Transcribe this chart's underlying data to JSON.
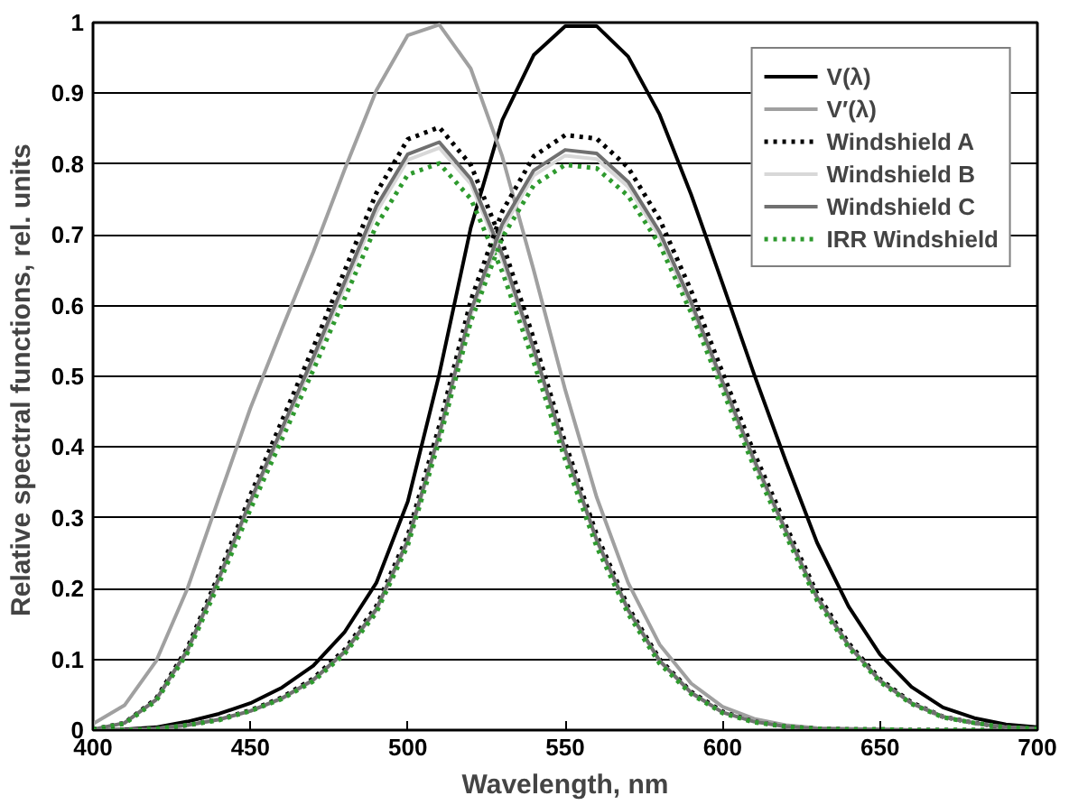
{
  "chart_data": {
    "type": "line",
    "xlabel": "Wavelength, nm",
    "ylabel": "Relative spectral functions,  rel. units",
    "x": [
      400,
      410,
      420,
      430,
      440,
      450,
      460,
      470,
      480,
      490,
      500,
      510,
      520,
      530,
      540,
      550,
      560,
      570,
      580,
      590,
      600,
      610,
      620,
      630,
      640,
      650,
      660,
      670,
      680,
      690,
      700
    ],
    "xlim": [
      400,
      700
    ],
    "xticks": [
      400,
      450,
      500,
      550,
      600,
      650,
      700
    ],
    "ylim": [
      0,
      1
    ],
    "yticks": [
      0,
      0.1,
      0.2,
      0.3,
      0.4,
      0.5,
      0.6,
      0.7,
      0.8,
      0.9,
      1
    ],
    "grid": "y",
    "legend": "top right",
    "marker": "none",
    "series": [
      {
        "name": "V(λ)",
        "color": "#000000",
        "line_style": "solid",
        "values": [
          0,
          0.001,
          0.004,
          0.012,
          0.023,
          0.038,
          0.06,
          0.091,
          0.139,
          0.208,
          0.323,
          0.503,
          0.71,
          0.862,
          0.954,
          0.995,
          0.995,
          0.952,
          0.87,
          0.757,
          0.631,
          0.503,
          0.381,
          0.265,
          0.175,
          0.107,
          0.061,
          0.032,
          0.017,
          0.008,
          0.004
        ]
      },
      {
        "name": "V′(λ)",
        "color": "#a0a0a0",
        "line_style": "solid",
        "values": [
          0.009,
          0.035,
          0.097,
          0.2,
          0.328,
          0.455,
          0.567,
          0.676,
          0.793,
          0.904,
          0.982,
          0.997,
          0.935,
          0.811,
          0.65,
          0.481,
          0.329,
          0.208,
          0.121,
          0.066,
          0.033,
          0.016,
          0.007,
          0.003,
          0.002,
          0.001,
          0,
          0,
          0,
          0,
          0
        ]
      },
      {
        "name": "Windshield A",
        "color": "#000000",
        "line_style": "dotted",
        "values": [
          0.001,
          0.01,
          0.044,
          0.116,
          0.22,
          0.332,
          0.437,
          0.541,
          0.65,
          0.759,
          0.835,
          0.852,
          0.799,
          0.689,
          0.553,
          0.406,
          0.276,
          0.174,
          0.1,
          0.054,
          0.026,
          0.012,
          0.005,
          0.002,
          0.001,
          0.001,
          0,
          0,
          0,
          0,
          0
        ]
      },
      {
        "name": "Windshield B",
        "color": "#d8d8d8",
        "line_style": "solid",
        "values": [
          0.001,
          0.01,
          0.042,
          0.111,
          0.212,
          0.32,
          0.421,
          0.521,
          0.627,
          0.732,
          0.806,
          0.823,
          0.772,
          0.666,
          0.534,
          0.392,
          0.267,
          0.168,
          0.097,
          0.052,
          0.025,
          0.012,
          0.005,
          0.002,
          0.001,
          0.001,
          0,
          0,
          0,
          0,
          0
        ]
      },
      {
        "name": "Windshield C",
        "color": "#707070",
        "line_style": "solid",
        "values": [
          0.001,
          0.01,
          0.043,
          0.113,
          0.215,
          0.324,
          0.426,
          0.527,
          0.634,
          0.74,
          0.814,
          0.831,
          0.779,
          0.672,
          0.539,
          0.396,
          0.269,
          0.17,
          0.098,
          0.053,
          0.025,
          0.012,
          0.005,
          0.002,
          0.001,
          0.001,
          0,
          0,
          0,
          0,
          0
        ]
      },
      {
        "name": "IRR Windshield",
        "color": "#2e9a2e",
        "line_style": "dotted",
        "values": [
          0.001,
          0.009,
          0.041,
          0.109,
          0.207,
          0.312,
          0.411,
          0.509,
          0.611,
          0.713,
          0.785,
          0.801,
          0.751,
          0.648,
          0.52,
          0.382,
          0.259,
          0.164,
          0.094,
          0.051,
          0.024,
          0.011,
          0.005,
          0.002,
          0.001,
          0.001,
          0,
          0,
          0,
          0,
          0
        ]
      },
      {
        "color": "#000000",
        "line_style": "dotted",
        "values": [
          0,
          0,
          0.002,
          0.007,
          0.015,
          0.028,
          0.046,
          0.073,
          0.114,
          0.175,
          0.275,
          0.43,
          0.607,
          0.733,
          0.811,
          0.841,
          0.836,
          0.795,
          0.722,
          0.621,
          0.505,
          0.392,
          0.29,
          0.193,
          0.123,
          0.072,
          0.039,
          0.019,
          0.01,
          0.004,
          0.002
        ]
      },
      {
        "color": "#d8d8d8",
        "line_style": "solid",
        "values": [
          0,
          0,
          0.002,
          0.007,
          0.015,
          0.027,
          0.044,
          0.07,
          0.11,
          0.169,
          0.265,
          0.415,
          0.586,
          0.708,
          0.784,
          0.812,
          0.807,
          0.768,
          0.697,
          0.599,
          0.487,
          0.378,
          0.28,
          0.186,
          0.119,
          0.069,
          0.038,
          0.019,
          0.01,
          0.004,
          0.002
        ]
      },
      {
        "color": "#707070",
        "line_style": "solid",
        "values": [
          0,
          0,
          0.002,
          0.007,
          0.015,
          0.027,
          0.045,
          0.071,
          0.111,
          0.171,
          0.268,
          0.419,
          0.592,
          0.715,
          0.791,
          0.82,
          0.815,
          0.775,
          0.704,
          0.605,
          0.492,
          0.382,
          0.283,
          0.188,
          0.12,
          0.07,
          0.038,
          0.019,
          0.01,
          0.004,
          0.002
        ]
      },
      {
        "color": "#2e9a2e",
        "line_style": "dotted",
        "values": [
          0,
          0,
          0.002,
          0.007,
          0.014,
          0.027,
          0.044,
          0.069,
          0.108,
          0.166,
          0.261,
          0.409,
          0.577,
          0.696,
          0.77,
          0.799,
          0.794,
          0.755,
          0.686,
          0.59,
          0.48,
          0.372,
          0.276,
          0.183,
          0.117,
          0.068,
          0.037,
          0.018,
          0.01,
          0.004,
          0.002
        ]
      }
    ]
  }
}
